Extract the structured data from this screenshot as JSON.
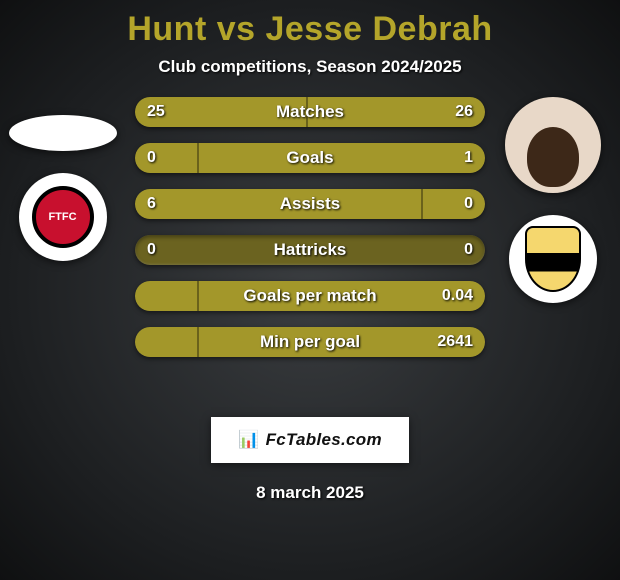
{
  "title_color": "#b4a52a",
  "title": "Hunt vs Jesse Debrah",
  "subtitle": "Club competitions, Season 2024/2025",
  "colors": {
    "left_fill": "#a3972a",
    "right_fill": "#a3972a",
    "track": "#6b6320",
    "text": "#ffffff"
  },
  "bars": [
    {
      "label": "Matches",
      "left": "25",
      "right": "26",
      "left_pct": 49,
      "right_pct": 51
    },
    {
      "label": "Goals",
      "left": "0",
      "right": "1",
      "left_pct": 18,
      "right_pct": 82
    },
    {
      "label": "Assists",
      "left": "6",
      "right": "0",
      "left_pct": 82,
      "right_pct": 18
    },
    {
      "label": "Hattricks",
      "left": "0",
      "right": "0",
      "left_pct": 50,
      "right_pct": 50,
      "empty": true
    },
    {
      "label": "Goals per match",
      "left": "",
      "right": "0.04",
      "left_pct": 18,
      "right_pct": 82
    },
    {
      "label": "Min per goal",
      "left": "",
      "right": "2641",
      "left_pct": 18,
      "right_pct": 82
    }
  ],
  "watermark": "FcTables.com",
  "date": "8 march 2025",
  "left_club_text": "FTFC"
}
